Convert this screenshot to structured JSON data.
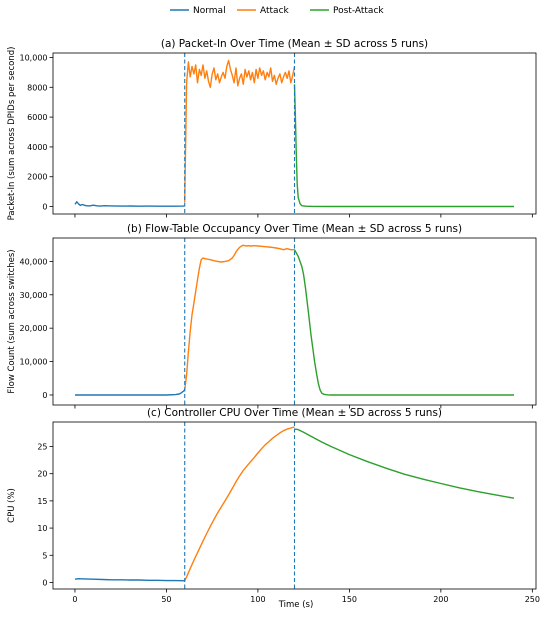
{
  "legend": {
    "entries": [
      {
        "label": "Normal",
        "color": "#1f77b4"
      },
      {
        "label": "Attack",
        "color": "#ff7f0e"
      },
      {
        "label": "Post-Attack",
        "color": "#2ca02c"
      }
    ],
    "placement": "top-center"
  },
  "shared_x": {
    "label": "Time (s)",
    "ticks": [
      0,
      50,
      100,
      150,
      200,
      250
    ],
    "tick_labels": [
      "0",
      "50",
      "100",
      "150",
      "200",
      "250"
    ],
    "xlim": [
      -12,
      252
    ]
  },
  "phase_markers": {
    "x": [
      60,
      120
    ],
    "color": "#1f77b4",
    "style": "dashed"
  },
  "chart_data": [
    {
      "type": "line",
      "title": "(a) Packet-In Over Time (Mean ± SD across 5 runs)",
      "ylabel": "Packet-In (sum across DPIDs per second)",
      "ylim": [
        -500,
        10300
      ],
      "yticks": [
        0,
        2000,
        4000,
        6000,
        8000,
        10000
      ],
      "ytick_labels": [
        "0",
        "2000",
        "4000",
        "6000",
        "8000",
        "10,000"
      ],
      "series": [
        {
          "name": "Normal",
          "x": [
            0,
            1,
            2,
            3,
            4,
            6,
            8,
            10,
            12,
            14,
            16,
            20,
            25,
            30,
            35,
            40,
            45,
            50,
            55,
            59,
            60
          ],
          "y": [
            150,
            320,
            180,
            80,
            140,
            60,
            40,
            90,
            50,
            30,
            60,
            40,
            30,
            35,
            25,
            30,
            20,
            25,
            20,
            30,
            40
          ]
        },
        {
          "name": "Attack",
          "x": [
            60,
            61,
            62,
            63,
            64,
            65,
            66,
            67,
            68,
            69,
            70,
            71,
            72,
            73,
            74,
            75,
            76,
            77,
            78,
            79,
            80,
            81,
            82,
            83,
            84,
            85,
            86,
            87,
            88,
            89,
            90,
            91,
            92,
            93,
            94,
            95,
            96,
            97,
            98,
            99,
            100,
            101,
            102,
            103,
            104,
            105,
            106,
            107,
            108,
            109,
            110,
            111,
            112,
            113,
            114,
            115,
            116,
            117,
            118,
            119,
            120
          ],
          "y": [
            300,
            8300,
            9700,
            8700,
            9400,
            8900,
            9500,
            8300,
            9200,
            8800,
            9500,
            8600,
            9100,
            8400,
            8000,
            8900,
            9300,
            8500,
            8900,
            8300,
            8700,
            9000,
            8600,
            9400,
            9800,
            9200,
            8800,
            8300,
            9300,
            8100,
            8600,
            8900,
            8200,
            9200,
            8700,
            9100,
            8500,
            9000,
            8300,
            9200,
            8600,
            9300,
            8800,
            9100,
            8500,
            9000,
            8700,
            9300,
            8400,
            8800,
            8200,
            8600,
            8900,
            8300,
            8700,
            9000,
            8600,
            9100,
            8300,
            8800,
            9400
          ]
        },
        {
          "name": "Post-Attack",
          "x": [
            120,
            120.5,
            121,
            121.5,
            122,
            123,
            124,
            126,
            130,
            140,
            160,
            180,
            200,
            220,
            240
          ],
          "y": [
            8200,
            6000,
            3500,
            1500,
            600,
            200,
            60,
            20,
            10,
            5,
            5,
            5,
            5,
            5,
            5
          ]
        }
      ]
    },
    {
      "type": "line",
      "title": "(b) Flow-Table Occupancy Over Time (Mean ± SD across 5 runs)",
      "ylabel": "Flow Count (sum across switches)",
      "ylim": [
        -3000,
        47000
      ],
      "yticks": [
        0,
        10000,
        20000,
        30000,
        40000
      ],
      "ytick_labels": [
        "0",
        "10,000",
        "20,000",
        "30,000",
        "40,000"
      ],
      "series": [
        {
          "name": "Normal",
          "x": [
            0,
            10,
            20,
            30,
            40,
            50,
            55,
            57,
            58,
            59,
            60
          ],
          "y": [
            0,
            0,
            0,
            0,
            0,
            0,
            100,
            300,
            600,
            1000,
            1500
          ]
        },
        {
          "name": "Attack",
          "x": [
            60,
            61,
            62,
            63,
            64,
            65,
            66,
            67,
            68,
            69,
            70,
            71,
            72,
            74,
            76,
            78,
            80,
            82,
            84,
            86,
            87,
            88,
            89,
            90,
            91,
            92,
            93,
            94,
            95,
            96,
            98,
            100,
            102,
            104,
            106,
            108,
            110,
            112,
            114,
            116,
            118,
            120
          ],
          "y": [
            1500,
            6000,
            13000,
            19000,
            24000,
            27500,
            31000,
            34500,
            38000,
            40500,
            41000,
            40800,
            40700,
            40500,
            40200,
            40000,
            39800,
            40000,
            40200,
            41000,
            41800,
            42800,
            43600,
            44200,
            44600,
            44800,
            44700,
            44600,
            44700,
            44600,
            44700,
            44600,
            44500,
            44400,
            44300,
            44200,
            44000,
            43800,
            43500,
            43800,
            43500,
            43500
          ]
        },
        {
          "name": "Post-Attack",
          "x": [
            120,
            121,
            122,
            123,
            124,
            125,
            126,
            127,
            128,
            129,
            130,
            131,
            132,
            133,
            134,
            135,
            136,
            137,
            138,
            140,
            150,
            160,
            180,
            200,
            220,
            240
          ],
          "y": [
            43500,
            42500,
            41500,
            40000,
            38500,
            36000,
            32000,
            27500,
            23000,
            18000,
            14000,
            10000,
            6500,
            3500,
            1500,
            500,
            200,
            100,
            50,
            0,
            0,
            0,
            0,
            0,
            0,
            0
          ]
        }
      ]
    },
    {
      "type": "line",
      "title": "(c) Controller CPU Over Time (Mean ± SD across 5 runs)",
      "ylabel": "CPU (%)",
      "ylim": [
        -1.2,
        29.5
      ],
      "yticks": [
        0,
        5,
        10,
        15,
        20,
        25
      ],
      "ytick_labels": [
        "0",
        "5",
        "10",
        "15",
        "20",
        "25"
      ],
      "series": [
        {
          "name": "Normal",
          "x": [
            0,
            2,
            5,
            10,
            15,
            20,
            25,
            30,
            35,
            40,
            45,
            50,
            55,
            60
          ],
          "y": [
            0.6,
            0.7,
            0.65,
            0.6,
            0.55,
            0.5,
            0.5,
            0.45,
            0.45,
            0.4,
            0.4,
            0.35,
            0.35,
            0.3
          ]
        },
        {
          "name": "Attack",
          "x": [
            60,
            61,
            62,
            64,
            66,
            68,
            70,
            72,
            74,
            76,
            78,
            80,
            82,
            84,
            86,
            88,
            90,
            92,
            94,
            96,
            98,
            100,
            102,
            104,
            106,
            108,
            110,
            112,
            114,
            116,
            118,
            120
          ],
          "y": [
            0.3,
            1.0,
            1.8,
            3.3,
            4.8,
            6.2,
            7.6,
            9.0,
            10.3,
            11.6,
            12.8,
            13.9,
            15.0,
            16.1,
            17.3,
            18.5,
            19.6,
            20.6,
            21.4,
            22.2,
            23.0,
            23.8,
            24.6,
            25.3,
            25.9,
            26.5,
            27.0,
            27.5,
            27.9,
            28.2,
            28.4,
            28.6
          ]
        },
        {
          "name": "Post-Attack",
          "x": [
            120,
            122,
            125,
            130,
            135,
            140,
            150,
            160,
            170,
            180,
            190,
            200,
            210,
            220,
            230,
            240
          ],
          "y": [
            28.2,
            28.1,
            27.6,
            26.7,
            25.8,
            25.0,
            23.5,
            22.2,
            21.0,
            19.9,
            19.0,
            18.2,
            17.4,
            16.7,
            16.1,
            15.5
          ]
        }
      ]
    }
  ]
}
